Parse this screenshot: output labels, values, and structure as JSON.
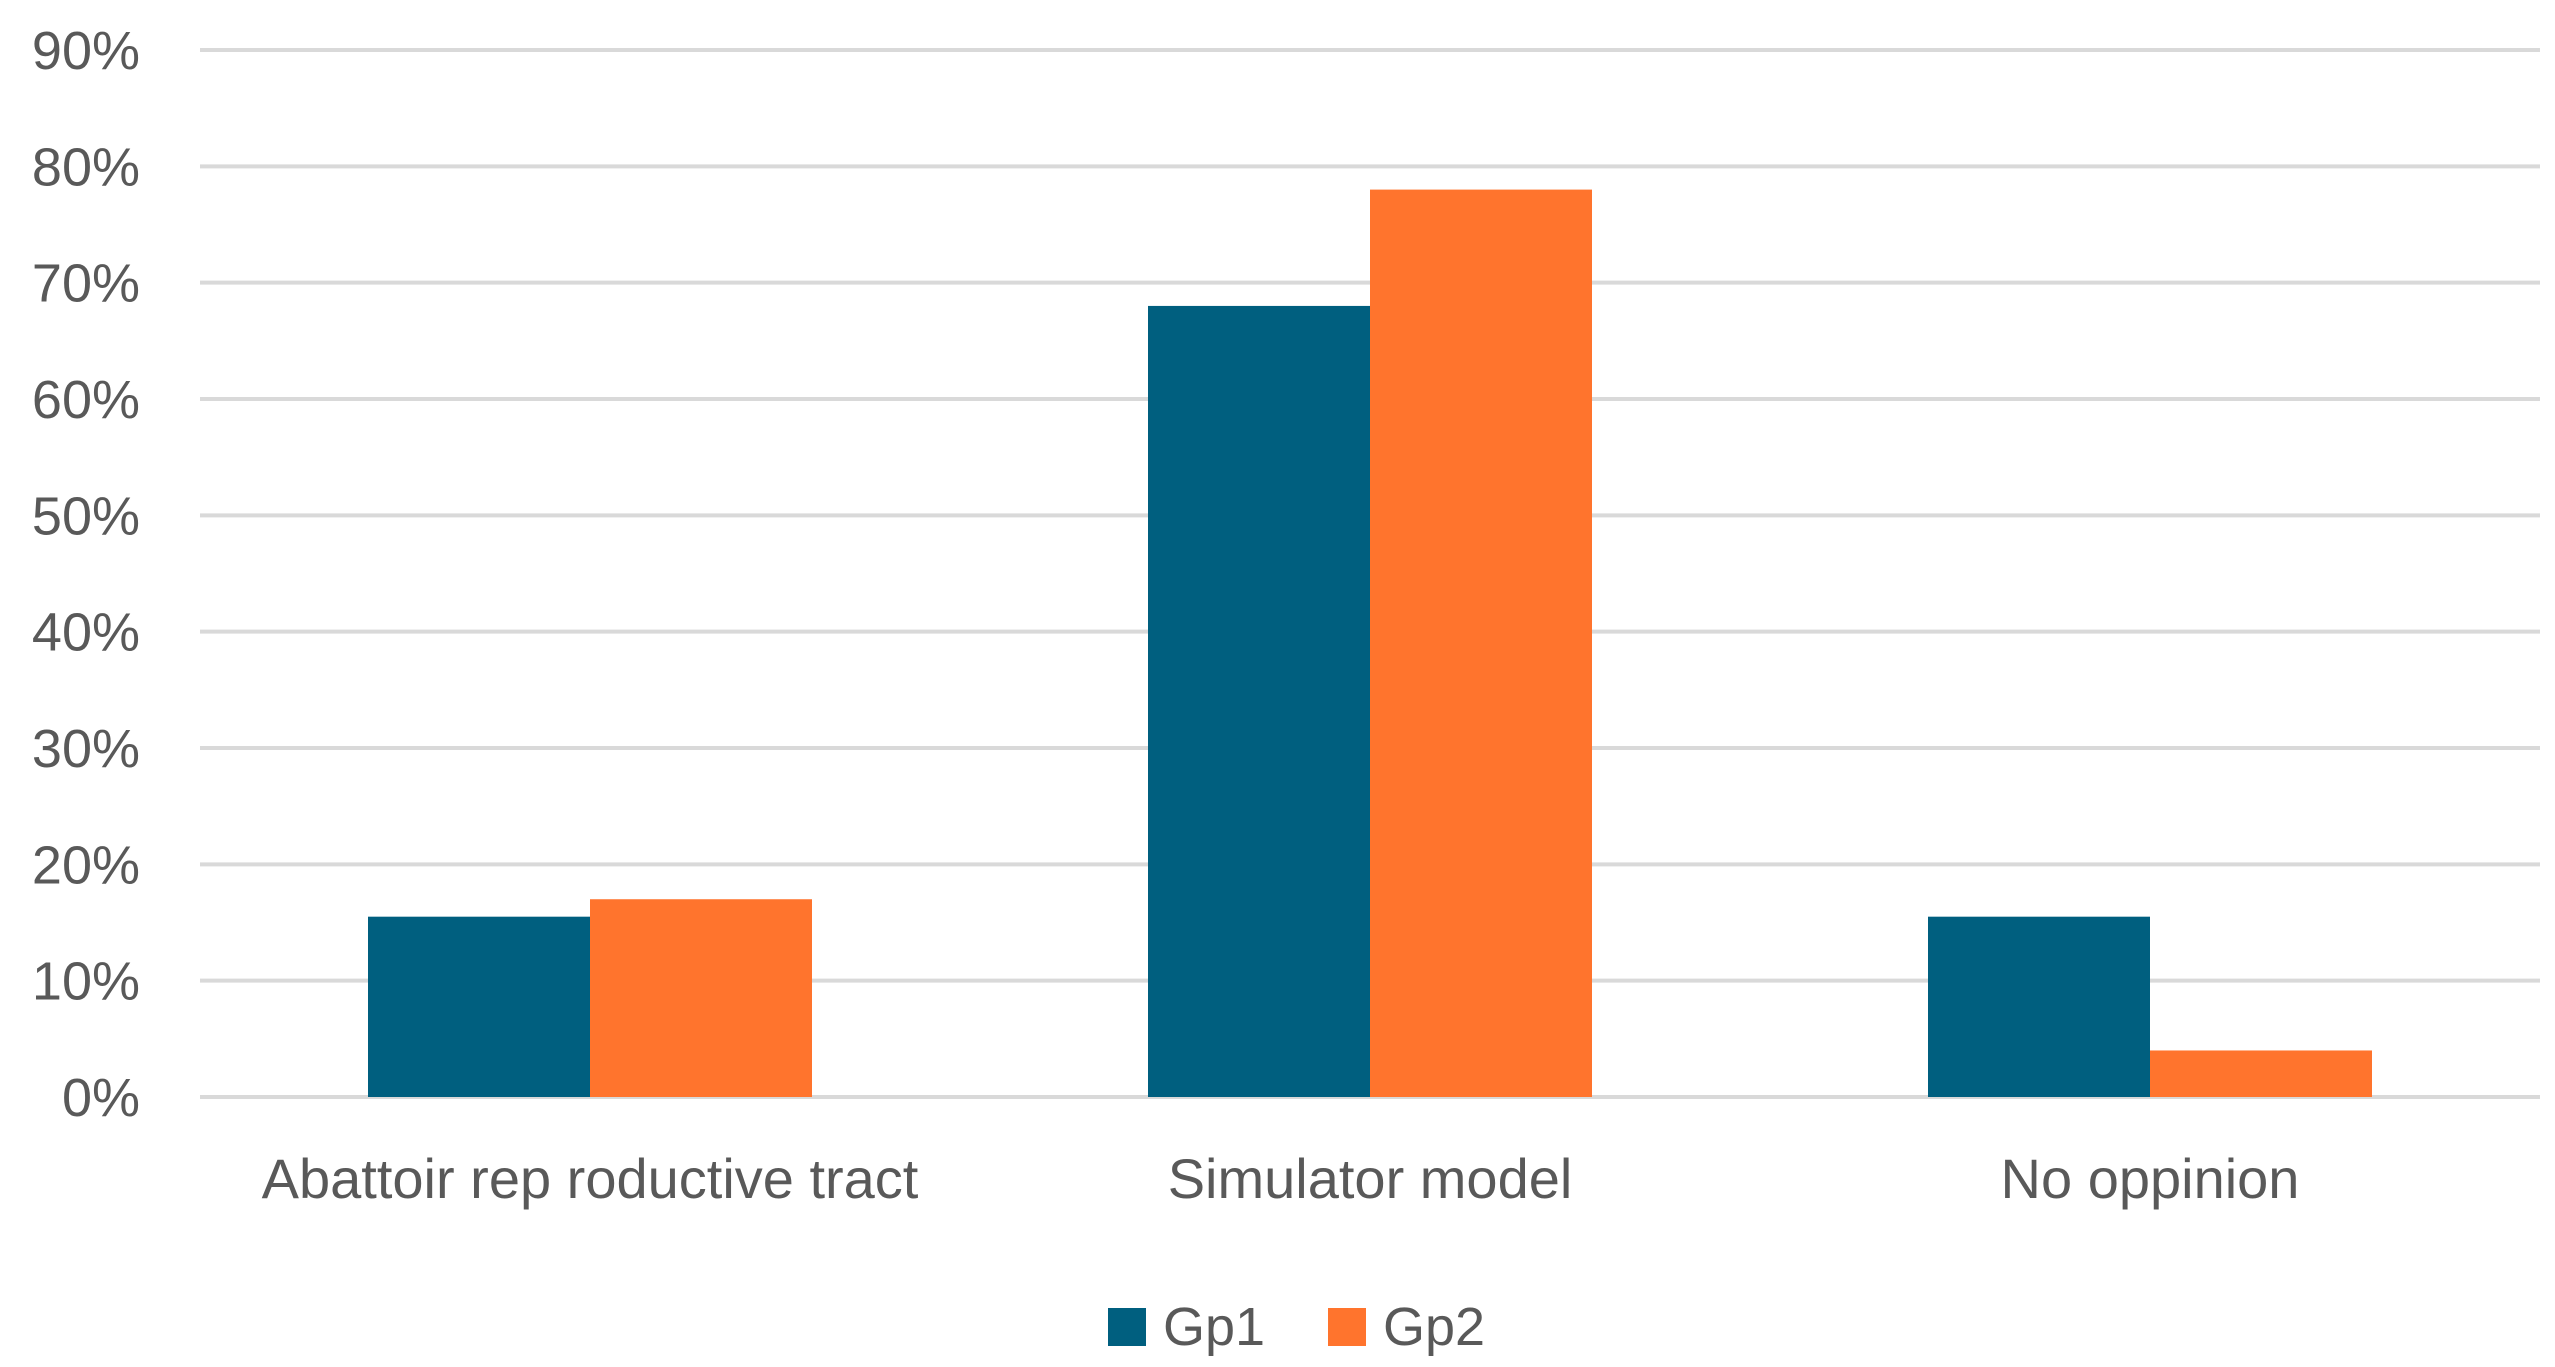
{
  "chart_data": {
    "type": "bar",
    "title": "",
    "xlabel": "",
    "ylabel": "",
    "categories": [
      "Abattoir rep roductive tract",
      "Simulator  model",
      "No oppinion"
    ],
    "series": [
      {
        "name": "Gp1",
        "color": "#005F7F",
        "values": [
          15.5,
          68,
          15.5
        ]
      },
      {
        "name": "Gp2",
        "color": "#FF742D",
        "values": [
          17,
          78,
          4
        ]
      }
    ],
    "ylim": [
      0,
      90
    ],
    "yticks": [
      0,
      10,
      20,
      30,
      40,
      50,
      60,
      70,
      80,
      90
    ],
    "ytick_format": "%",
    "grid": true,
    "grid_color": "#D9D9D9",
    "legend_position": "bottom"
  }
}
